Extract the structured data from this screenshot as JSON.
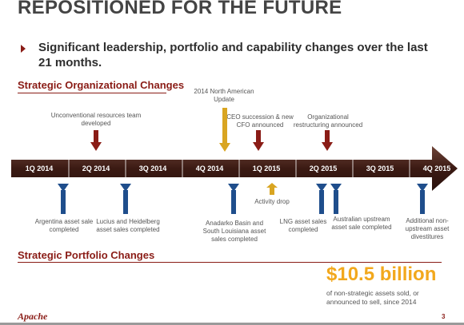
{
  "slide": {
    "title": "REPOSITIONED FOR THE FUTURE",
    "bullet": "Significant leadership, portfolio and capability changes over the last 21 months.",
    "section_org": "Strategic Organizational Changes",
    "section_portfolio": "Strategic Portfolio Changes",
    "big_number": "$10.5 billion",
    "big_caption": "of non-strategic assets sold, or announced to sell, since 2014",
    "logo": "Apache",
    "page_number": "3"
  },
  "timeline": {
    "ticks": [
      "1Q 2014",
      "2Q 2014",
      "3Q 2014",
      "4Q 2014",
      "1Q 2015",
      "2Q 2015",
      "3Q 2015",
      "4Q 2015"
    ],
    "colors": {
      "bar": "#3b1a13",
      "bar_highlight": "#6e4438",
      "down_arrow": "#8a1c16",
      "gold_arrow": "#d9a521",
      "up_arrow": "#1f4e8c"
    }
  },
  "org_events": [
    {
      "label": "Unconventional resources team developed",
      "color": "down_arrow"
    },
    {
      "label": "2014 North American Update",
      "color": "gold_arrow"
    },
    {
      "label": "CEO succession & new CFO announced",
      "color": "down_arrow"
    },
    {
      "label": "Organizational restructuring announced",
      "color": "down_arrow"
    }
  ],
  "portfolio_events": [
    {
      "label": "Argentina asset sale completed"
    },
    {
      "label": "Lucius and Heidelberg asset sales completed"
    },
    {
      "label": "Anadarko Basin and South Louisiana asset sales completed"
    },
    {
      "label": "Activity drop"
    },
    {
      "label": "LNG asset sales completed"
    },
    {
      "label": "Australian upstream asset sale completed"
    },
    {
      "label": "Additional non-upstream asset divestitures"
    }
  ]
}
